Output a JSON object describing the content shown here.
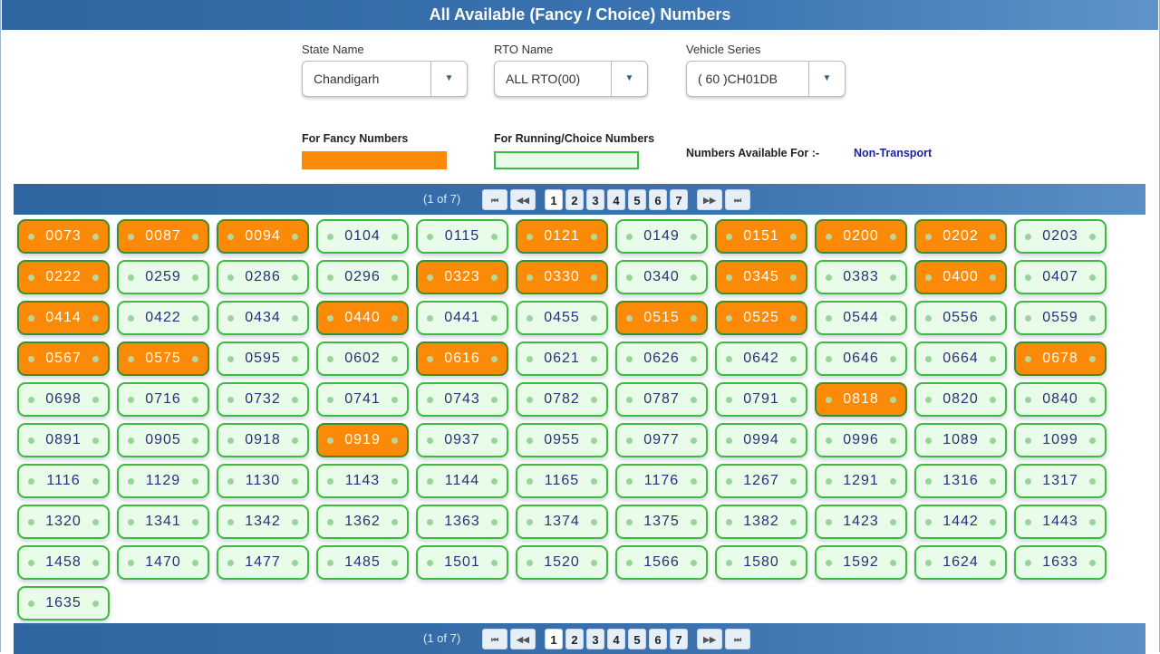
{
  "header": {
    "title": "All Available (Fancy / Choice) Numbers"
  },
  "filters": {
    "state": {
      "label": "State Name",
      "value": "Chandigarh"
    },
    "rto": {
      "label": "RTO Name",
      "value": "ALL RTO(00)"
    },
    "series": {
      "label": "Vehicle Series",
      "value": "( 60 )CH01DB"
    }
  },
  "legend": {
    "fancy_label": "For Fancy Numbers",
    "fancy_color": "#fb8a08",
    "choice_label": "For Running/Choice Numbers",
    "choice_color": "#e9fbe9",
    "available_label": "Numbers Available For :-",
    "available_value": "Non-Transport"
  },
  "pager": {
    "info": "(1 of 7)",
    "first": "⏮",
    "prev": "◀◀",
    "pages": [
      "1",
      "2",
      "3",
      "4",
      "5",
      "6",
      "7"
    ],
    "current": "1",
    "next": "▶▶",
    "last": "⏭"
  },
  "numbers": [
    {
      "n": "0073",
      "fancy": true
    },
    {
      "n": "0087",
      "fancy": true
    },
    {
      "n": "0094",
      "fancy": true
    },
    {
      "n": "0104",
      "fancy": false
    },
    {
      "n": "0115",
      "fancy": false
    },
    {
      "n": "0121",
      "fancy": true
    },
    {
      "n": "0149",
      "fancy": false
    },
    {
      "n": "0151",
      "fancy": true
    },
    {
      "n": "0200",
      "fancy": true
    },
    {
      "n": "0202",
      "fancy": true
    },
    {
      "n": "0203",
      "fancy": false
    },
    {
      "n": "0222",
      "fancy": true
    },
    {
      "n": "0259",
      "fancy": false
    },
    {
      "n": "0286",
      "fancy": false
    },
    {
      "n": "0296",
      "fancy": false
    },
    {
      "n": "0323",
      "fancy": true
    },
    {
      "n": "0330",
      "fancy": true
    },
    {
      "n": "0340",
      "fancy": false
    },
    {
      "n": "0345",
      "fancy": true
    },
    {
      "n": "0383",
      "fancy": false
    },
    {
      "n": "0400",
      "fancy": true
    },
    {
      "n": "0407",
      "fancy": false
    },
    {
      "n": "0414",
      "fancy": true
    },
    {
      "n": "0422",
      "fancy": false
    },
    {
      "n": "0434",
      "fancy": false
    },
    {
      "n": "0440",
      "fancy": true
    },
    {
      "n": "0441",
      "fancy": false
    },
    {
      "n": "0455",
      "fancy": false
    },
    {
      "n": "0515",
      "fancy": true
    },
    {
      "n": "0525",
      "fancy": true
    },
    {
      "n": "0544",
      "fancy": false
    },
    {
      "n": "0556",
      "fancy": false
    },
    {
      "n": "0559",
      "fancy": false
    },
    {
      "n": "0567",
      "fancy": true
    },
    {
      "n": "0575",
      "fancy": true
    },
    {
      "n": "0595",
      "fancy": false
    },
    {
      "n": "0602",
      "fancy": false
    },
    {
      "n": "0616",
      "fancy": true
    },
    {
      "n": "0621",
      "fancy": false
    },
    {
      "n": "0626",
      "fancy": false
    },
    {
      "n": "0642",
      "fancy": false
    },
    {
      "n": "0646",
      "fancy": false
    },
    {
      "n": "0664",
      "fancy": false
    },
    {
      "n": "0678",
      "fancy": true
    },
    {
      "n": "0698",
      "fancy": false
    },
    {
      "n": "0716",
      "fancy": false
    },
    {
      "n": "0732",
      "fancy": false
    },
    {
      "n": "0741",
      "fancy": false
    },
    {
      "n": "0743",
      "fancy": false
    },
    {
      "n": "0782",
      "fancy": false
    },
    {
      "n": "0787",
      "fancy": false
    },
    {
      "n": "0791",
      "fancy": false
    },
    {
      "n": "0818",
      "fancy": true
    },
    {
      "n": "0820",
      "fancy": false
    },
    {
      "n": "0840",
      "fancy": false
    },
    {
      "n": "0891",
      "fancy": false
    },
    {
      "n": "0905",
      "fancy": false
    },
    {
      "n": "0918",
      "fancy": false
    },
    {
      "n": "0919",
      "fancy": true
    },
    {
      "n": "0937",
      "fancy": false
    },
    {
      "n": "0955",
      "fancy": false
    },
    {
      "n": "0977",
      "fancy": false
    },
    {
      "n": "0994",
      "fancy": false
    },
    {
      "n": "0996",
      "fancy": false
    },
    {
      "n": "1089",
      "fancy": false
    },
    {
      "n": "1099",
      "fancy": false
    },
    {
      "n": "1116",
      "fancy": false
    },
    {
      "n": "1129",
      "fancy": false
    },
    {
      "n": "1130",
      "fancy": false
    },
    {
      "n": "1143",
      "fancy": false
    },
    {
      "n": "1144",
      "fancy": false
    },
    {
      "n": "1165",
      "fancy": false
    },
    {
      "n": "1176",
      "fancy": false
    },
    {
      "n": "1267",
      "fancy": false
    },
    {
      "n": "1291",
      "fancy": false
    },
    {
      "n": "1316",
      "fancy": false
    },
    {
      "n": "1317",
      "fancy": false
    },
    {
      "n": "1320",
      "fancy": false
    },
    {
      "n": "1341",
      "fancy": false
    },
    {
      "n": "1342",
      "fancy": false
    },
    {
      "n": "1362",
      "fancy": false
    },
    {
      "n": "1363",
      "fancy": false
    },
    {
      "n": "1374",
      "fancy": false
    },
    {
      "n": "1375",
      "fancy": false
    },
    {
      "n": "1382",
      "fancy": false
    },
    {
      "n": "1423",
      "fancy": false
    },
    {
      "n": "1442",
      "fancy": false
    },
    {
      "n": "1443",
      "fancy": false
    },
    {
      "n": "1458",
      "fancy": false
    },
    {
      "n": "1470",
      "fancy": false
    },
    {
      "n": "1477",
      "fancy": false
    },
    {
      "n": "1485",
      "fancy": false
    },
    {
      "n": "1501",
      "fancy": false
    },
    {
      "n": "1520",
      "fancy": false
    },
    {
      "n": "1566",
      "fancy": false
    },
    {
      "n": "1580",
      "fancy": false
    },
    {
      "n": "1592",
      "fancy": false
    },
    {
      "n": "1624",
      "fancy": false
    },
    {
      "n": "1633",
      "fancy": false
    },
    {
      "n": "1635",
      "fancy": false
    }
  ]
}
